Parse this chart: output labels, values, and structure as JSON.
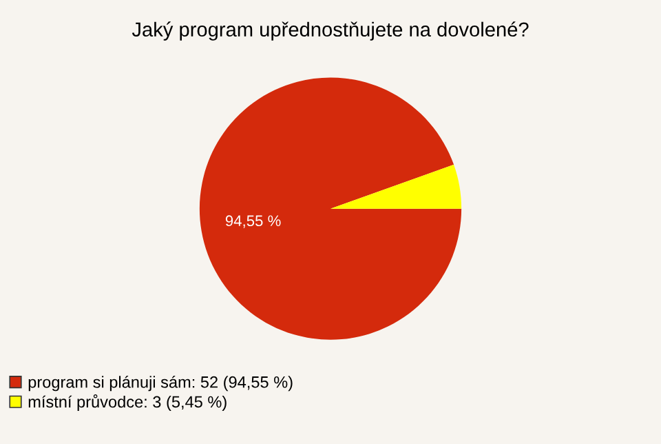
{
  "chart_data": {
    "type": "pie",
    "title": "Jaký program upřednostňujete na dovolené?",
    "categories": [
      "program si plánuji sám: 52 (94,55 %)",
      "místní průvodce: 3 (5,45 %)"
    ],
    "values": [
      94.55,
      5.45
    ],
    "colors": [
      "#d42a0c",
      "#ffff00"
    ],
    "value_labels": [
      "94,55 %",
      null
    ],
    "legend": "bottom left"
  }
}
